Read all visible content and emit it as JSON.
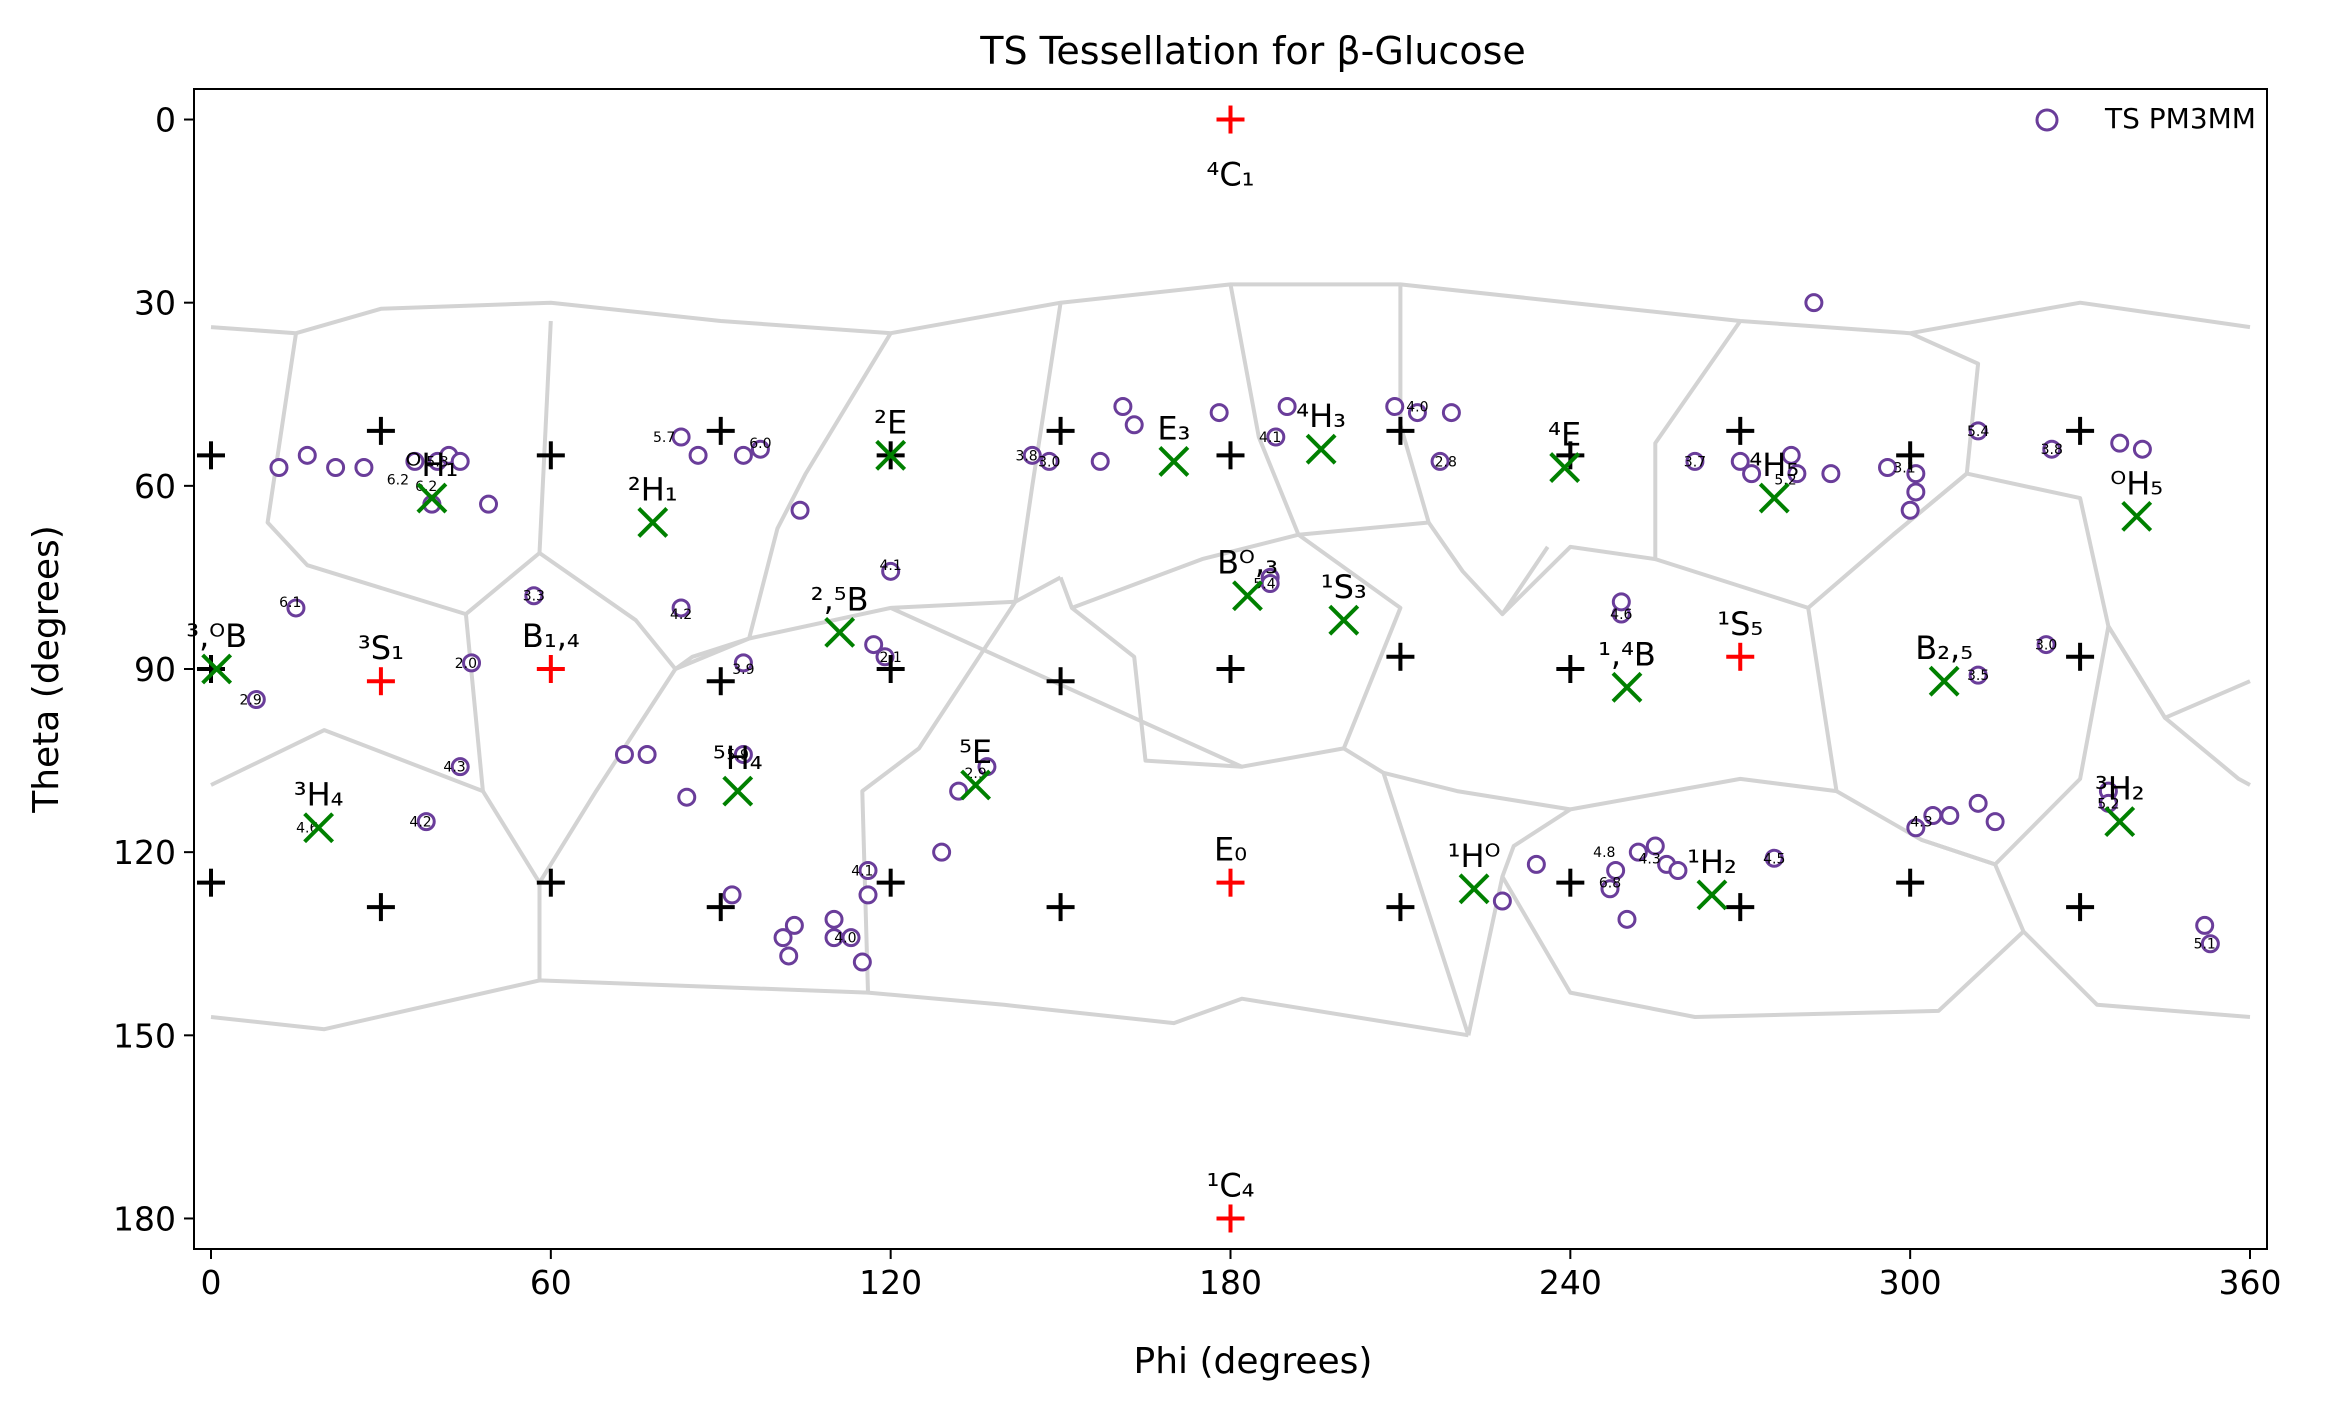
{
  "chart_data": {
    "type": "scatter",
    "title": "TS Tessellation for β-Glucose",
    "xlabel": "Phi (degrees)",
    "ylabel": "Theta (degrees)",
    "xlim": [
      -3,
      363
    ],
    "ylim": [
      185,
      -5
    ],
    "xticks": [
      0,
      60,
      120,
      180,
      240,
      300,
      360
    ],
    "yticks": [
      0,
      30,
      60,
      90,
      120,
      150,
      180
    ],
    "grid": false,
    "legend_position": "top-right",
    "colors": {
      "tessellation": "#d3d3d3",
      "grid_point": "#000000",
      "canonical": "#ff0000",
      "center": "#008000",
      "ts_marker": "#6a3d9a"
    },
    "tessellation_edges": [
      [
        [
          0,
          34
        ],
        [
          15,
          35
        ],
        [
          30,
          31
        ],
        [
          60,
          30
        ],
        [
          90,
          33
        ],
        [
          120,
          35
        ],
        [
          150,
          30
        ],
        [
          180,
          27
        ],
        [
          210,
          27
        ],
        [
          240,
          30
        ],
        [
          270,
          33
        ],
        [
          300,
          35
        ],
        [
          330,
          30
        ],
        [
          360,
          34
        ]
      ],
      [
        [
          15,
          35
        ],
        [
          10,
          66
        ],
        [
          17,
          73
        ],
        [
          45,
          81
        ],
        [
          48,
          110
        ],
        [
          20,
          100
        ],
        [
          0,
          109
        ]
      ],
      [
        [
          60,
          33
        ],
        [
          58,
          71
        ],
        [
          45,
          81
        ]
      ],
      [
        [
          58,
          71
        ],
        [
          75,
          82
        ],
        [
          82,
          90
        ],
        [
          68,
          110
        ],
        [
          58,
          125
        ],
        [
          58,
          141
        ],
        [
          20,
          149
        ],
        [
          0,
          147
        ]
      ],
      [
        [
          48,
          110
        ],
        [
          58,
          125
        ]
      ],
      [
        [
          82,
          90
        ],
        [
          95,
          85
        ],
        [
          120,
          80
        ],
        [
          142,
          79
        ],
        [
          150,
          75
        ]
      ],
      [
        [
          95,
          85
        ],
        [
          85,
          88
        ],
        [
          82,
          90
        ]
      ],
      [
        [
          120,
          35
        ],
        [
          105,
          58
        ],
        [
          100,
          67
        ],
        [
          95,
          85
        ]
      ],
      [
        [
          150,
          30
        ],
        [
          145,
          60
        ],
        [
          142,
          79
        ]
      ],
      [
        [
          142,
          79
        ],
        [
          125,
          103
        ],
        [
          115,
          110
        ],
        [
          116,
          143
        ],
        [
          58,
          141
        ]
      ],
      [
        [
          150,
          75
        ],
        [
          152,
          80
        ],
        [
          163,
          88
        ],
        [
          165,
          105
        ],
        [
          182,
          106
        ],
        [
          120,
          80
        ]
      ],
      [
        [
          180,
          27
        ],
        [
          185,
          52
        ],
        [
          192,
          68
        ],
        [
          175,
          72
        ],
        [
          152,
          80
        ]
      ],
      [
        [
          192,
          68
        ],
        [
          215,
          66
        ],
        [
          221,
          74
        ],
        [
          228,
          81
        ],
        [
          236,
          70
        ]
      ],
      [
        [
          210,
          27
        ],
        [
          210,
          50
        ],
        [
          215,
          66
        ]
      ],
      [
        [
          270,
          33
        ],
        [
          255,
          53
        ],
        [
          255,
          72
        ],
        [
          240,
          70
        ],
        [
          228,
          81
        ]
      ],
      [
        [
          255,
          72
        ],
        [
          282,
          80
        ],
        [
          287,
          110
        ],
        [
          270,
          108
        ],
        [
          240,
          113
        ],
        [
          230,
          119
        ],
        [
          228,
          124
        ],
        [
          222,
          150
        ]
      ],
      [
        [
          182,
          106
        ],
        [
          200,
          103
        ],
        [
          207,
          107
        ],
        [
          222,
          150
        ]
      ],
      [
        [
          200,
          103
        ],
        [
          210,
          80
        ],
        [
          192,
          68
        ]
      ],
      [
        [
          207,
          107
        ],
        [
          220,
          110
        ],
        [
          240,
          113
        ]
      ],
      [
        [
          282,
          80
        ],
        [
          297,
          68
        ],
        [
          310,
          58
        ],
        [
          312,
          40
        ],
        [
          300,
          35
        ]
      ],
      [
        [
          297,
          68
        ],
        [
          310,
          58
        ],
        [
          330,
          62
        ],
        [
          335,
          83
        ],
        [
          345,
          98
        ],
        [
          358,
          108
        ],
        [
          360,
          109
        ]
      ],
      [
        [
          335,
          83
        ],
        [
          345,
          98
        ],
        [
          360,
          92
        ]
      ],
      [
        [
          287,
          110
        ],
        [
          302,
          118
        ],
        [
          315,
          122
        ],
        [
          330,
          108
        ],
        [
          335,
          83
        ]
      ],
      [
        [
          302,
          118
        ],
        [
          315,
          122
        ],
        [
          320,
          133
        ],
        [
          333,
          145
        ],
        [
          360,
          147
        ]
      ],
      [
        [
          228,
          124
        ],
        [
          240,
          143
        ],
        [
          262,
          147
        ],
        [
          305,
          146
        ],
        [
          320,
          133
        ]
      ],
      [
        [
          116,
          143
        ],
        [
          140,
          145
        ],
        [
          170,
          148
        ],
        [
          182,
          144
        ],
        [
          222,
          150
        ]
      ]
    ],
    "grid_points": [
      [
        0,
        55
      ],
      [
        30,
        51
      ],
      [
        60,
        55
      ],
      [
        90,
        51
      ],
      [
        120,
        55
      ],
      [
        150,
        51
      ],
      [
        180,
        55
      ],
      [
        210,
        51
      ],
      [
        240,
        55
      ],
      [
        270,
        51
      ],
      [
        300,
        55
      ],
      [
        330,
        51
      ],
      [
        0,
        90
      ],
      [
        90,
        92
      ],
      [
        120,
        90
      ],
      [
        150,
        92
      ],
      [
        180,
        90
      ],
      [
        210,
        88
      ],
      [
        240,
        90
      ],
      [
        330,
        88
      ],
      [
        0,
        125
      ],
      [
        30,
        129
      ],
      [
        60,
        125
      ],
      [
        90,
        129
      ],
      [
        120,
        125
      ],
      [
        150,
        129
      ],
      [
        210,
        129
      ],
      [
        240,
        125
      ],
      [
        270,
        129
      ],
      [
        300,
        125
      ],
      [
        330,
        129
      ]
    ],
    "canonical_points": [
      {
        "x": 180,
        "y": 0,
        "label": "⁴C₁",
        "label_pos": "below"
      },
      {
        "x": 30,
        "y": 92,
        "label": "³S₁",
        "label_pos": "above"
      },
      {
        "x": 60,
        "y": 90,
        "label": "B₁,₄",
        "label_pos": "above"
      },
      {
        "x": 270,
        "y": 88,
        "label": "¹S₅",
        "label_pos": "above"
      },
      {
        "x": 180,
        "y": 125,
        "label": "E₀",
        "label_pos": "above"
      },
      {
        "x": 180,
        "y": 180,
        "label": "¹C₄",
        "label_pos": "above"
      }
    ],
    "center_points": [
      {
        "x": 1,
        "y": 90,
        "label": "³,ᴼB"
      },
      {
        "x": 39,
        "y": 62,
        "label": "ᴼH₁"
      },
      {
        "x": 78,
        "y": 66,
        "label": "²H₁"
      },
      {
        "x": 120,
        "y": 55,
        "label": "²E"
      },
      {
        "x": 170,
        "y": 56,
        "label": "E₃"
      },
      {
        "x": 196,
        "y": 54,
        "label": "⁴H₃"
      },
      {
        "x": 239,
        "y": 57,
        "label": "⁴E"
      },
      {
        "x": 276,
        "y": 62,
        "label": "⁴H₅"
      },
      {
        "x": 340,
        "y": 65,
        "label": "ᴼH₅"
      },
      {
        "x": 111,
        "y": 84,
        "label": "²,⁵B"
      },
      {
        "x": 183,
        "y": 78,
        "label": "Bᴼ,₃"
      },
      {
        "x": 200,
        "y": 82,
        "label": "¹S₃"
      },
      {
        "x": 250,
        "y": 93,
        "label": "¹,⁴B"
      },
      {
        "x": 306,
        "y": 92,
        "label": "B₂,₅"
      },
      {
        "x": 19,
        "y": 116,
        "label": "³H₄"
      },
      {
        "x": 93,
        "y": 110,
        "label": "⁵H₄"
      },
      {
        "x": 135,
        "y": 109,
        "label": "⁵E"
      },
      {
        "x": 223,
        "y": 126,
        "label": "¹Hᴼ"
      },
      {
        "x": 265,
        "y": 127,
        "label": "¹H₂"
      },
      {
        "x": 337,
        "y": 115,
        "label": "³H₂"
      }
    ],
    "ts_points": [
      [
        12,
        57
      ],
      [
        17,
        55
      ],
      [
        22,
        57
      ],
      [
        27,
        57
      ],
      [
        36,
        56
      ],
      [
        40,
        56
      ],
      [
        42,
        55
      ],
      [
        44,
        56
      ],
      [
        39,
        63
      ],
      [
        49,
        63
      ],
      [
        15,
        80
      ],
      [
        46,
        89
      ],
      [
        8,
        95
      ],
      [
        44,
        106
      ],
      [
        38,
        115
      ],
      [
        57,
        78
      ],
      [
        83,
        52
      ],
      [
        83,
        80
      ],
      [
        86,
        55
      ],
      [
        94,
        55
      ],
      [
        97,
        54
      ],
      [
        104,
        64
      ],
      [
        120,
        74
      ],
      [
        117,
        86
      ],
      [
        119,
        88
      ],
      [
        94,
        89
      ],
      [
        73,
        104
      ],
      [
        77,
        104
      ],
      [
        84,
        111
      ],
      [
        94,
        104
      ],
      [
        132,
        110
      ],
      [
        137,
        106
      ],
      [
        129,
        120
      ],
      [
        116,
        123
      ],
      [
        116,
        127
      ],
      [
        115,
        138
      ],
      [
        92,
        127
      ],
      [
        103,
        132
      ],
      [
        110,
        131
      ],
      [
        101,
        134
      ],
      [
        102,
        137
      ],
      [
        110,
        134
      ],
      [
        113,
        134
      ],
      [
        145,
        55
      ],
      [
        148,
        56
      ],
      [
        157,
        56
      ],
      [
        161,
        47
      ],
      [
        163,
        50
      ],
      [
        178,
        48
      ],
      [
        188,
        52
      ],
      [
        190,
        47
      ],
      [
        209,
        47
      ],
      [
        213,
        48
      ],
      [
        219,
        48
      ],
      [
        217,
        56
      ],
      [
        187,
        75
      ],
      [
        187,
        76
      ],
      [
        249,
        81
      ],
      [
        249,
        79
      ],
      [
        270,
        56
      ],
      [
        262,
        56
      ],
      [
        272,
        58
      ],
      [
        279,
        55
      ],
      [
        280,
        58
      ],
      [
        286,
        58
      ],
      [
        301,
        58
      ],
      [
        301,
        61
      ],
      [
        300,
        64
      ],
      [
        296,
        57
      ],
      [
        312,
        51
      ],
      [
        325,
        54
      ],
      [
        337,
        53
      ],
      [
        341,
        54
      ],
      [
        324,
        86
      ],
      [
        312,
        91
      ],
      [
        301,
        116
      ],
      [
        304,
        114
      ],
      [
        307,
        114
      ],
      [
        315,
        115
      ],
      [
        312,
        112
      ],
      [
        234,
        122
      ],
      [
        228,
        128
      ],
      [
        247,
        126
      ],
      [
        248,
        123
      ],
      [
        250,
        131
      ],
      [
        252,
        120
      ],
      [
        255,
        119
      ],
      [
        257,
        122
      ],
      [
        259,
        123
      ],
      [
        276,
        121
      ],
      [
        335,
        110
      ],
      [
        335,
        112
      ],
      [
        352,
        132
      ],
      [
        353,
        135
      ],
      [
        283,
        30
      ]
    ],
    "ts_labels": [
      {
        "x": 14,
        "y": 79,
        "label": "6.1"
      },
      {
        "x": 45,
        "y": 89,
        "label": "2.0"
      },
      {
        "x": 7,
        "y": 95,
        "label": "2.9"
      },
      {
        "x": 43,
        "y": 106,
        "label": "4.3"
      },
      {
        "x": 37,
        "y": 115,
        "label": "4.2"
      },
      {
        "x": 57,
        "y": 78,
        "label": "3.3"
      },
      {
        "x": 33,
        "y": 59,
        "label": "6.2"
      },
      {
        "x": 38,
        "y": 60,
        "label": "6.2"
      },
      {
        "x": 40,
        "y": 56,
        "label": "5.3"
      },
      {
        "x": 80,
        "y": 52,
        "label": "5.7"
      },
      {
        "x": 83,
        "y": 81,
        "label": "4.2"
      },
      {
        "x": 97,
        "y": 53,
        "label": "6.0"
      },
      {
        "x": 94,
        "y": 90,
        "label": "3.9"
      },
      {
        "x": 93,
        "y": 104,
        "label": "5.9"
      },
      {
        "x": 120,
        "y": 73,
        "label": "4.1"
      },
      {
        "x": 120,
        "y": 88,
        "label": "2.1"
      },
      {
        "x": 135,
        "y": 107,
        "label": "2.9"
      },
      {
        "x": 115,
        "y": 123,
        "label": "4.1"
      },
      {
        "x": 112,
        "y": 134,
        "label": "4.0"
      },
      {
        "x": 144,
        "y": 55,
        "label": "3.8"
      },
      {
        "x": 148,
        "y": 56,
        "label": "3.0"
      },
      {
        "x": 187,
        "y": 52,
        "label": "4.1"
      },
      {
        "x": 213,
        "y": 47,
        "label": "4.0"
      },
      {
        "x": 218,
        "y": 56,
        "label": "2.8"
      },
      {
        "x": 186,
        "y": 76,
        "label": "5.4"
      },
      {
        "x": 249,
        "y": 81,
        "label": "4.6"
      },
      {
        "x": 262,
        "y": 56,
        "label": "3.7"
      },
      {
        "x": 278,
        "y": 59,
        "label": "5.2"
      },
      {
        "x": 299,
        "y": 57,
        "label": "3.1"
      },
      {
        "x": 312,
        "y": 51,
        "label": "5.4"
      },
      {
        "x": 325,
        "y": 54,
        "label": "3.8"
      },
      {
        "x": 324,
        "y": 86,
        "label": "3.0"
      },
      {
        "x": 312,
        "y": 91,
        "label": "3.5"
      },
      {
        "x": 302,
        "y": 115,
        "label": "4.3"
      },
      {
        "x": 247,
        "y": 125,
        "label": "6.8"
      },
      {
        "x": 246,
        "y": 120,
        "label": "4.8"
      },
      {
        "x": 254,
        "y": 121,
        "label": "4.3"
      },
      {
        "x": 276,
        "y": 121,
        "label": "4.5"
      },
      {
        "x": 335,
        "y": 112,
        "label": "5.2"
      },
      {
        "x": 17,
        "y": 116,
        "label": "4.6"
      },
      {
        "x": 352,
        "y": 135,
        "label": "5.1"
      }
    ],
    "legend": [
      {
        "name": "TS PM3MM",
        "marker": "open-circle"
      }
    ]
  }
}
